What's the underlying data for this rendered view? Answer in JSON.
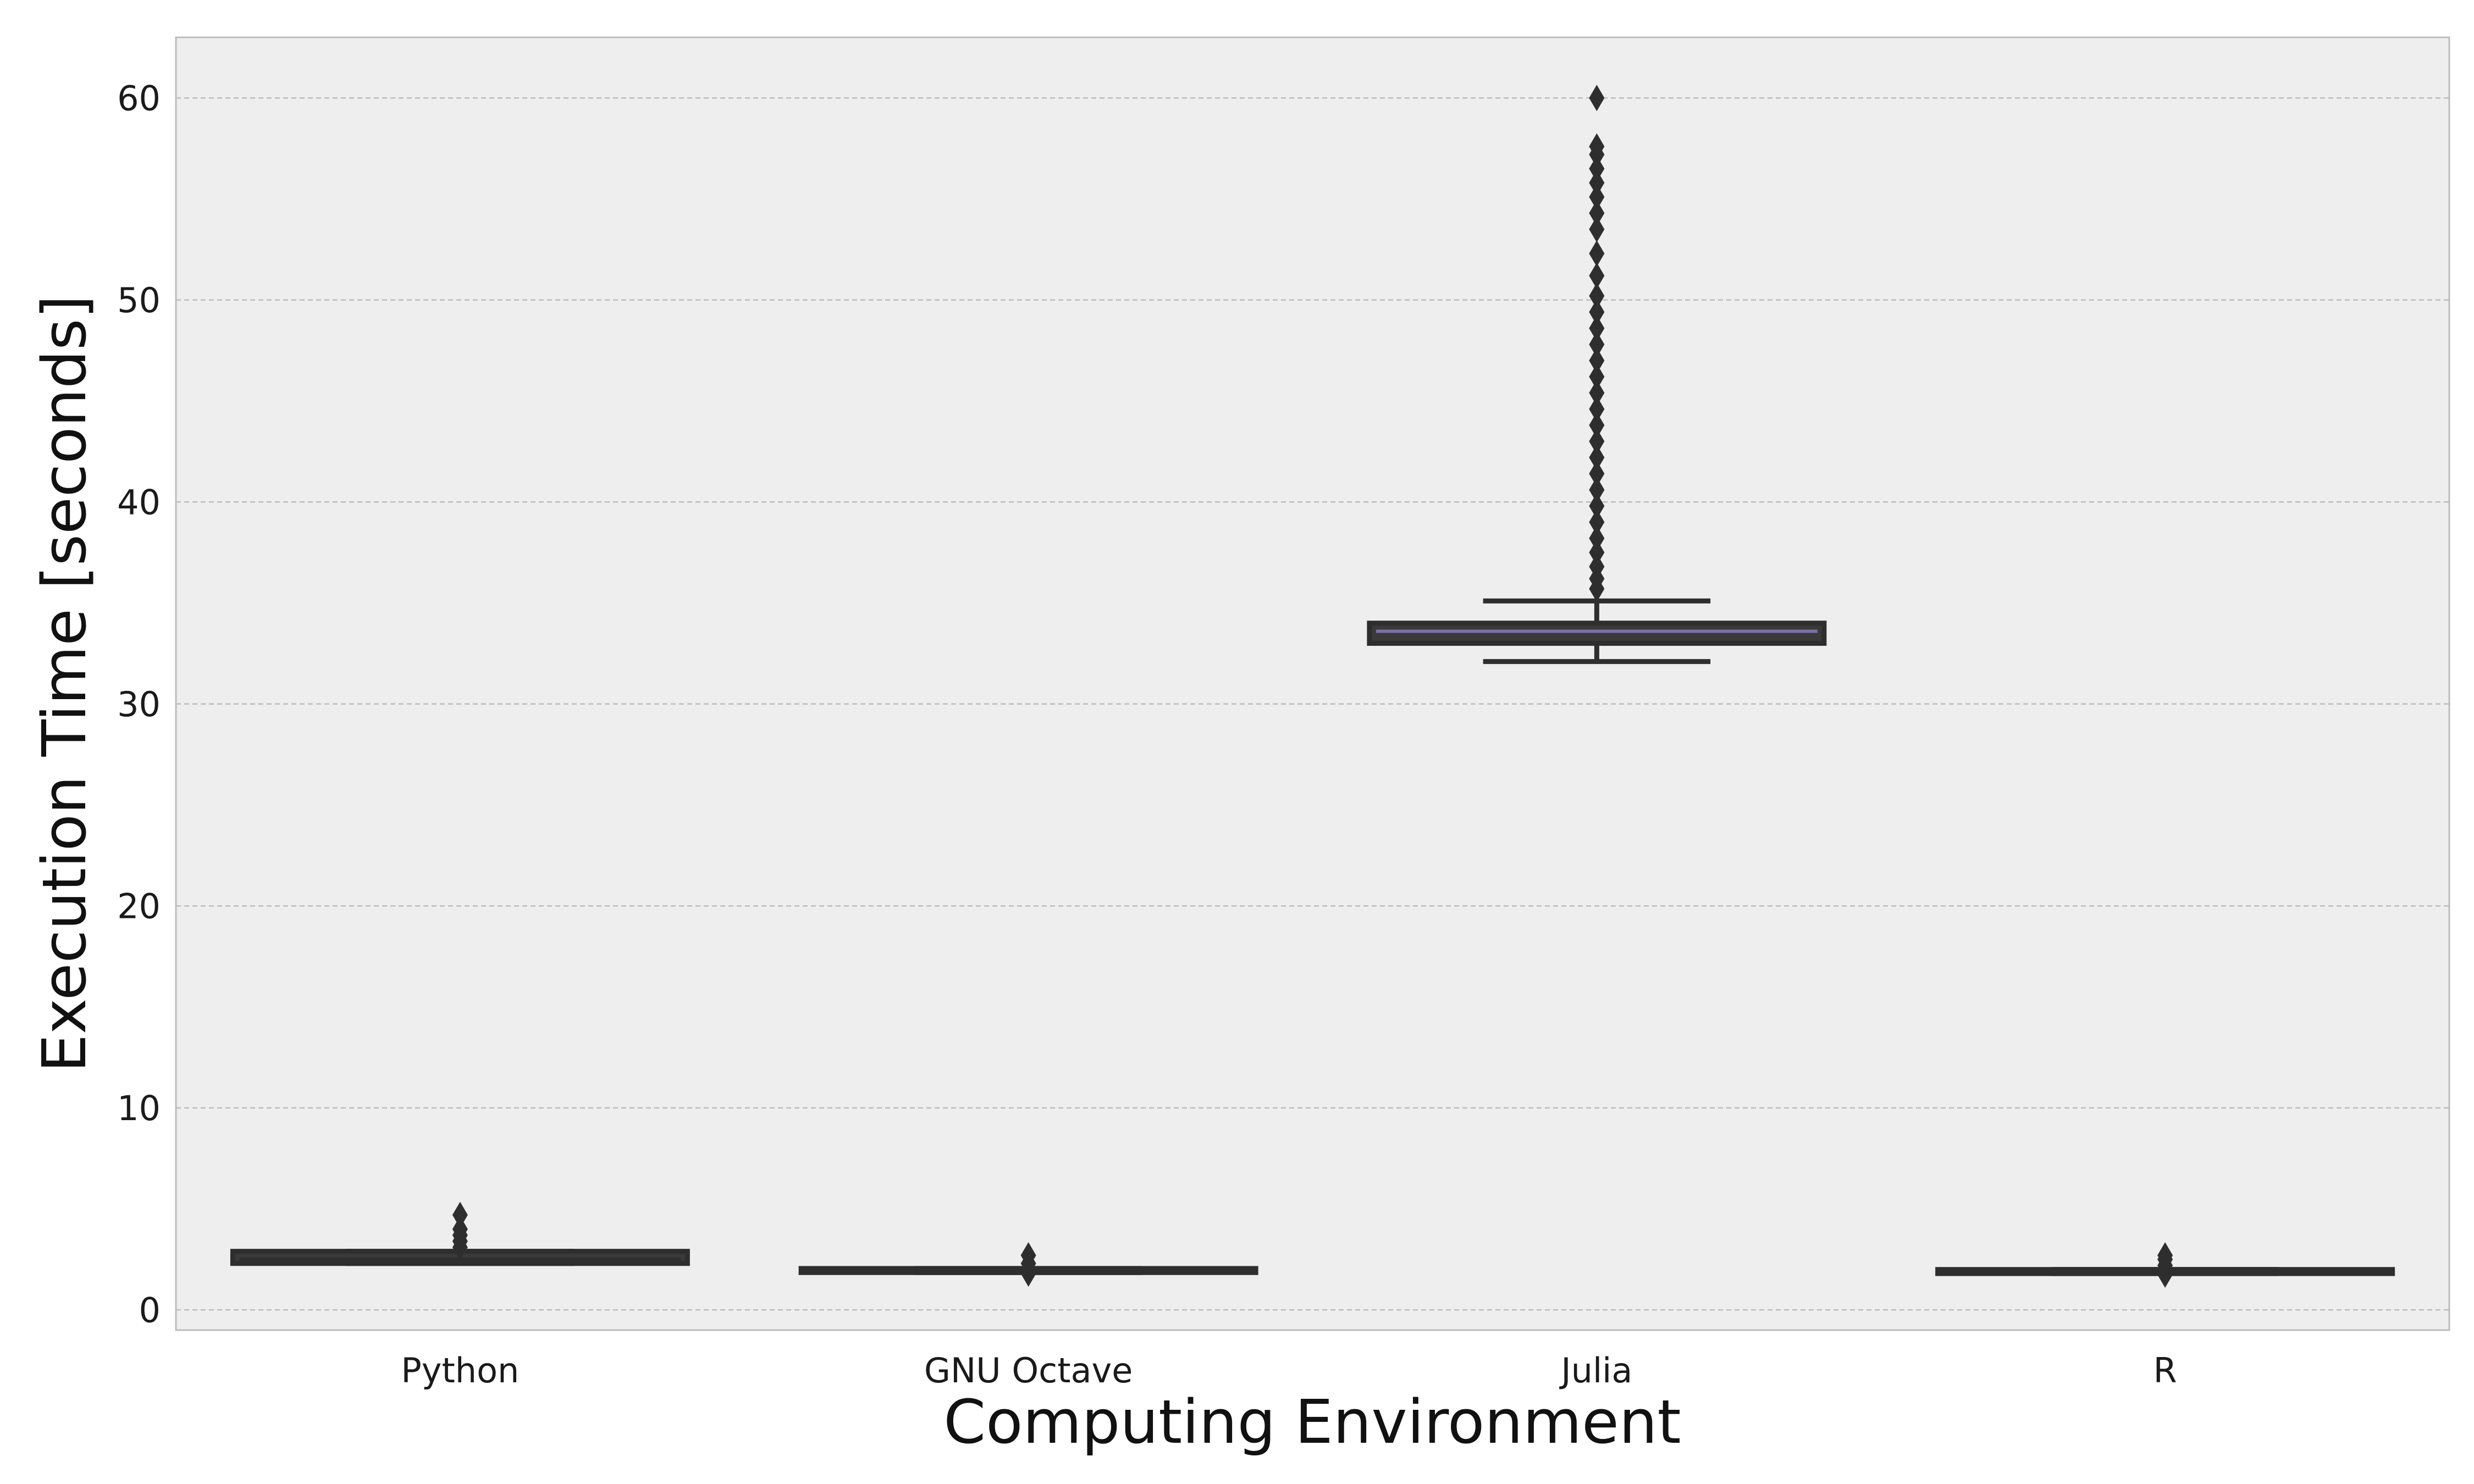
{
  "chart_data": {
    "type": "box",
    "xlabel": "Computing Environment",
    "ylabel": "Execution Time [seconds]",
    "ylim": [
      -1,
      63
    ],
    "yticks": [
      0,
      10,
      20,
      30,
      40,
      50,
      60
    ],
    "grid": "y",
    "categories": [
      "Python",
      "GNU Octave",
      "Julia",
      "R"
    ],
    "boxes": [
      {
        "category": "Python",
        "q1": 2.3,
        "median": 2.5,
        "q3": 2.9,
        "whisker_low": 2.3,
        "whisker_high": 2.9,
        "outliers": [
          3.1,
          3.4,
          3.7,
          4.0,
          4.7
        ]
      },
      {
        "category": "GNU Octave",
        "q1": 1.85,
        "median": 1.95,
        "q3": 2.05,
        "whisker_low": 1.85,
        "whisker_high": 2.05,
        "outliers": [
          1.8,
          2.3,
          2.7
        ]
      },
      {
        "category": "Julia",
        "q1": 33.0,
        "median": 33.6,
        "q3": 34.0,
        "whisker_low": 32.1,
        "whisker_high": 35.1,
        "outliers": [
          35.7,
          36.2,
          36.8,
          37.5,
          38.2,
          39.0,
          39.8,
          40.6,
          41.4,
          42.2,
          43.0,
          43.8,
          44.6,
          45.4,
          46.2,
          47.0,
          47.8,
          48.6,
          49.4,
          50.2,
          51.2,
          52.3,
          53.5,
          54.3,
          55.1,
          55.8,
          56.5,
          57.2,
          57.6,
          60.0
        ]
      },
      {
        "category": "R",
        "q1": 1.8,
        "median": 1.9,
        "q3": 2.0,
        "whisker_low": 1.8,
        "whisker_high": 2.0,
        "outliers": [
          1.75,
          2.2,
          2.5,
          2.7
        ]
      }
    ],
    "colors": {
      "plot_background": "#eeeeee",
      "gridline": "#bdbdbd",
      "box_edge": "#2e2e2e",
      "julia_median": "#7a6fa8"
    }
  }
}
